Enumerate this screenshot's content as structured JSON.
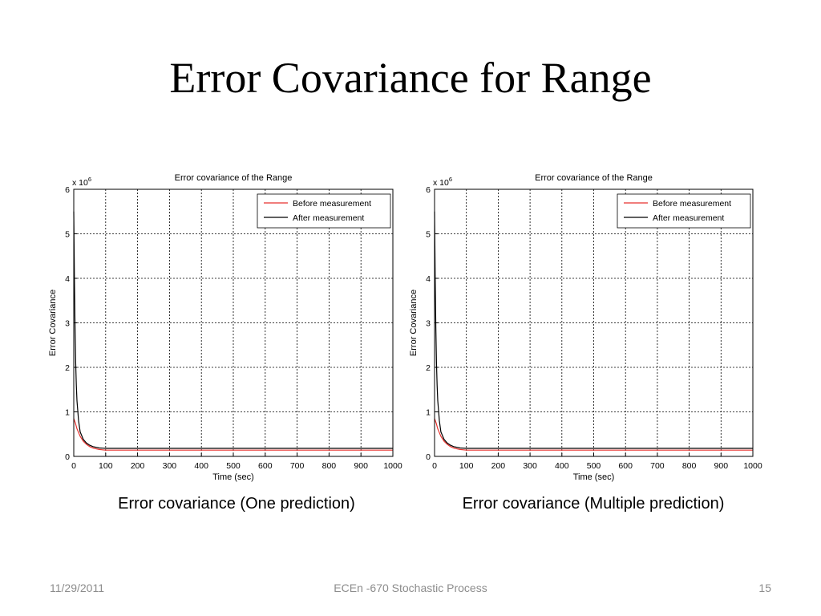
{
  "slide": {
    "title": "Error Covariance for Range",
    "captions": [
      "Error covariance  (One prediction)",
      "Error covariance  (Multiple prediction)"
    ]
  },
  "footer": {
    "date": "11/29/2011",
    "course": "ECEn -670 Stochastic Process",
    "page": "15"
  },
  "colors": {
    "before": "#e8322e",
    "after": "#000000",
    "grid": "#000000"
  },
  "chart_data": [
    {
      "type": "line",
      "title": "Error covariance of the Range",
      "xlabel": "Time (sec)",
      "ylabel": "Error Covariance",
      "y_multiplier": "x 10",
      "y_exponent": "6",
      "xlim": [
        0,
        1000
      ],
      "ylim": [
        0,
        6
      ],
      "xticks": [
        0,
        100,
        200,
        300,
        400,
        500,
        600,
        700,
        800,
        900,
        1000
      ],
      "yticks": [
        0,
        1,
        2,
        3,
        4,
        5,
        6
      ],
      "grid": true,
      "legend": "top-right",
      "series": [
        {
          "name": "Before measurement",
          "color": "#e8322e",
          "x": [
            0,
            5,
            10,
            20,
            30,
            40,
            50,
            60,
            70,
            80,
            100,
            150,
            200,
            300,
            500,
            700,
            1000
          ],
          "y": [
            0.85,
            0.75,
            0.62,
            0.45,
            0.34,
            0.27,
            0.22,
            0.19,
            0.17,
            0.155,
            0.14,
            0.14,
            0.14,
            0.14,
            0.14,
            0.14,
            0.14
          ]
        },
        {
          "name": "After measurement",
          "color": "#000000",
          "x": [
            0,
            2,
            4,
            6,
            8,
            10,
            15,
            20,
            30,
            40,
            50,
            60,
            80,
            100,
            150,
            200,
            300,
            500,
            700,
            1000
          ],
          "y": [
            5.5,
            4.0,
            2.9,
            2.1,
            1.6,
            1.25,
            0.8,
            0.55,
            0.38,
            0.3,
            0.25,
            0.22,
            0.19,
            0.18,
            0.18,
            0.18,
            0.18,
            0.18,
            0.18,
            0.18
          ]
        }
      ]
    },
    {
      "type": "line",
      "title": "Error covariance of the Range",
      "xlabel": "Time (sec)",
      "ylabel": "Error Covariance",
      "y_multiplier": "x 10",
      "y_exponent": "6",
      "xlim": [
        0,
        1000
      ],
      "ylim": [
        0,
        6
      ],
      "xticks": [
        0,
        100,
        200,
        300,
        400,
        500,
        600,
        700,
        800,
        900,
        1000
      ],
      "yticks": [
        0,
        1,
        2,
        3,
        4,
        5,
        6
      ],
      "grid": true,
      "legend": "top-right",
      "series": [
        {
          "name": "Before measurement",
          "color": "#e8322e",
          "x": [
            0,
            5,
            10,
            20,
            30,
            40,
            50,
            60,
            70,
            80,
            100,
            150,
            200,
            300,
            500,
            700,
            1000
          ],
          "y": [
            0.85,
            0.75,
            0.62,
            0.45,
            0.34,
            0.27,
            0.22,
            0.19,
            0.17,
            0.155,
            0.14,
            0.14,
            0.14,
            0.14,
            0.14,
            0.14,
            0.14
          ]
        },
        {
          "name": "After measurement",
          "color": "#000000",
          "x": [
            0,
            2,
            4,
            6,
            8,
            10,
            15,
            20,
            30,
            40,
            50,
            60,
            80,
            100,
            150,
            200,
            300,
            500,
            700,
            1000
          ],
          "y": [
            5.5,
            4.0,
            2.9,
            2.1,
            1.6,
            1.25,
            0.8,
            0.55,
            0.38,
            0.3,
            0.25,
            0.22,
            0.19,
            0.18,
            0.18,
            0.18,
            0.18,
            0.18,
            0.18,
            0.18
          ]
        }
      ]
    }
  ]
}
